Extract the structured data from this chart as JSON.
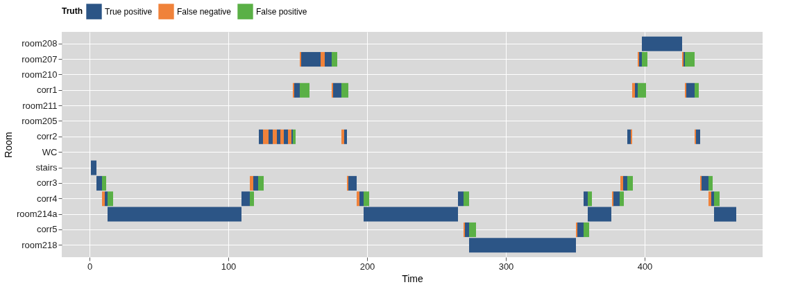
{
  "chart_data": {
    "type": "bar",
    "orientation": "horizontal",
    "xlabel": "Time",
    "ylabel": "Room",
    "legend_title": "Truth",
    "legend": "top",
    "grid": true,
    "categories": [
      "room208",
      "room207",
      "room210",
      "corr1",
      "room211",
      "room205",
      "corr2",
      "WC",
      "stairs",
      "corr3",
      "corr4",
      "room214a",
      "corr5",
      "room218"
    ],
    "xlim": [
      -20,
      485
    ],
    "xticks": [
      0,
      100,
      200,
      300,
      400
    ],
    "series": [
      {
        "name": "True positive",
        "color": "#2c5586",
        "base": [
          398,
          152.5,
          null,
          147.5,
          null,
          null,
          122,
          null,
          1,
          5,
          11,
          13,
          270.5,
          273.5
        ],
        "values": [
          29,
          14,
          null,
          4,
          null,
          null,
          3,
          null,
          4,
          4,
          2,
          96.5,
          3,
          77
        ]
      },
      {
        "color": "#2c5586",
        "base": [
          null,
          169.5,
          null,
          175.5,
          null,
          null,
          129,
          null,
          null,
          118,
          109.5,
          197.5,
          351.5,
          null
        ],
        "values": [
          null,
          5,
          null,
          6,
          null,
          null,
          3,
          null,
          null,
          3.5,
          6,
          68,
          4.5,
          null
        ]
      },
      {
        "color": "#2c5586",
        "base": [
          null,
          396,
          null,
          393,
          null,
          null,
          135,
          null,
          null,
          186.5,
          194.5,
          359,
          null,
          null
        ],
        "values": [
          null,
          2,
          null,
          2,
          null,
          null,
          3,
          null,
          null,
          6,
          3,
          17,
          null,
          null
        ]
      },
      {
        "color": "#2c5586",
        "base": [
          null,
          428,
          null,
          430,
          null,
          null,
          140,
          null,
          null,
          384.5,
          265.5,
          450,
          null,
          null
        ],
        "values": [
          null,
          1,
          null,
          6,
          null,
          null,
          3,
          null,
          null,
          3,
          4,
          16,
          null,
          null
        ]
      },
      {
        "color": "#2c5586",
        "base": [
          null,
          null,
          null,
          null,
          null,
          null,
          145.5,
          null,
          null,
          441,
          356,
          null,
          null,
          null
        ],
        "values": [
          null,
          null,
          null,
          null,
          null,
          null,
          1,
          null,
          null,
          5,
          3,
          null,
          null,
          null
        ]
      },
      {
        "color": "#2c5586",
        "base": [
          null,
          null,
          null,
          null,
          null,
          null,
          183.5,
          null,
          null,
          null,
          377,
          null,
          null,
          null
        ],
        "values": [
          null,
          null,
          null,
          null,
          null,
          null,
          2,
          null,
          null,
          null,
          5,
          null,
          null,
          null
        ]
      },
      {
        "color": "#2c5586",
        "base": [
          null,
          null,
          null,
          null,
          null,
          null,
          387.5,
          null,
          null,
          null,
          448,
          null,
          null,
          null
        ],
        "values": [
          null,
          null,
          null,
          null,
          null,
          null,
          3,
          null,
          null,
          null,
          2,
          null,
          null,
          null
        ]
      },
      {
        "color": "#2c5586",
        "base": [
          null,
          null,
          null,
          null,
          null,
          null,
          437,
          null,
          null,
          null,
          null,
          null,
          null,
          null
        ],
        "values": [
          null,
          null,
          null,
          null,
          null,
          null,
          3,
          null,
          null,
          null,
          null,
          null,
          null,
          null
        ]
      },
      {
        "name": "False negative",
        "color": "#f0823a",
        "base": [
          null,
          151.5,
          null,
          146.5,
          null,
          null,
          125,
          null,
          null,
          115.5,
          9,
          null,
          269.5,
          null
        ],
        "values": [
          null,
          1,
          null,
          1,
          null,
          null,
          4,
          null,
          null,
          2.5,
          2,
          null,
          1,
          null
        ]
      },
      {
        "color": "#f0823a",
        "base": [
          null,
          166.5,
          null,
          174.5,
          null,
          null,
          132,
          null,
          null,
          185.5,
          192.5,
          null,
          350.5,
          null
        ],
        "values": [
          null,
          3,
          null,
          1,
          null,
          null,
          3,
          null,
          null,
          1,
          2,
          null,
          1,
          null
        ]
      },
      {
        "color": "#f0823a",
        "base": [
          null,
          395,
          null,
          391,
          null,
          null,
          137.5,
          null,
          null,
          382.5,
          376.5,
          null,
          null,
          null
        ],
        "values": [
          null,
          1,
          null,
          2,
          null,
          null,
          2.5,
          null,
          null,
          2,
          1,
          null,
          null,
          null
        ]
      },
      {
        "color": "#f0823a",
        "base": [
          null,
          427,
          null,
          429,
          null,
          null,
          143,
          null,
          null,
          440,
          446,
          null,
          null,
          null
        ],
        "values": [
          null,
          1,
          null,
          1,
          null,
          null,
          2.5,
          null,
          null,
          1,
          2,
          null,
          null,
          null
        ]
      },
      {
        "color": "#f0823a",
        "base": [
          null,
          null,
          null,
          null,
          null,
          null,
          181.5,
          null,
          null,
          null,
          null,
          null,
          null,
          null
        ],
        "values": [
          null,
          null,
          null,
          null,
          null,
          null,
          2,
          null,
          null,
          null,
          null,
          null,
          null,
          null
        ]
      },
      {
        "color": "#f0823a",
        "base": [
          null,
          null,
          null,
          null,
          null,
          null,
          390,
          null,
          null,
          null,
          null,
          null,
          null,
          null
        ],
        "values": [
          null,
          null,
          null,
          null,
          null,
          null,
          1,
          null,
          null,
          null,
          null,
          null,
          null,
          null
        ]
      },
      {
        "color": "#f0823a",
        "base": [
          null,
          null,
          null,
          null,
          null,
          null,
          436,
          null,
          null,
          null,
          null,
          null,
          null,
          null
        ],
        "values": [
          null,
          null,
          null,
          null,
          null,
          null,
          1,
          null,
          null,
          null,
          null,
          null,
          null,
          null
        ]
      },
      {
        "name": "False positive",
        "color": "#5ab046",
        "base": [
          null,
          174.5,
          null,
          151.5,
          null,
          null,
          146.5,
          null,
          null,
          9,
          13,
          null,
          273.5,
          null
        ],
        "values": [
          null,
          4,
          null,
          7,
          null,
          null,
          2,
          null,
          null,
          3,
          4,
          null,
          5,
          null
        ]
      },
      {
        "color": "#5ab046",
        "base": [
          null,
          398,
          null,
          181.5,
          null,
          null,
          null,
          null,
          null,
          121.5,
          115.5,
          null,
          356,
          null
        ],
        "values": [
          null,
          4,
          null,
          5,
          null,
          null,
          null,
          null,
          null,
          4,
          3,
          null,
          4,
          null
        ]
      },
      {
        "color": "#5ab046",
        "base": [
          null,
          429,
          null,
          395,
          null,
          null,
          null,
          null,
          null,
          387.5,
          197.5,
          null,
          null,
          null
        ],
        "values": [
          null,
          7,
          null,
          6,
          null,
          null,
          null,
          null,
          null,
          4,
          4,
          null,
          null,
          null
        ]
      },
      {
        "color": "#5ab046",
        "base": [
          null,
          null,
          null,
          436,
          null,
          null,
          null,
          null,
          null,
          446,
          269.5,
          null,
          null,
          null
        ],
        "values": [
          null,
          null,
          null,
          3,
          null,
          null,
          null,
          null,
          null,
          3,
          4,
          null,
          null,
          null
        ]
      },
      {
        "color": "#5ab046",
        "base": [
          null,
          null,
          null,
          null,
          null,
          null,
          null,
          null,
          null,
          null,
          359,
          null,
          null,
          null
        ],
        "values": [
          null,
          null,
          null,
          null,
          null,
          null,
          null,
          null,
          null,
          null,
          3,
          null,
          null,
          null
        ]
      },
      {
        "color": "#5ab046",
        "base": [
          null,
          null,
          null,
          null,
          null,
          null,
          null,
          null,
          null,
          null,
          382,
          null,
          null,
          null
        ],
        "values": [
          null,
          null,
          null,
          null,
          null,
          null,
          null,
          null,
          null,
          null,
          3,
          null,
          null,
          null
        ]
      },
      {
        "color": "#5ab046",
        "base": [
          null,
          null,
          null,
          null,
          null,
          null,
          null,
          null,
          null,
          null,
          450,
          null,
          null,
          null
        ],
        "values": [
          null,
          null,
          null,
          null,
          null,
          null,
          null,
          null,
          null,
          null,
          4,
          null,
          null,
          null
        ]
      }
    ]
  }
}
